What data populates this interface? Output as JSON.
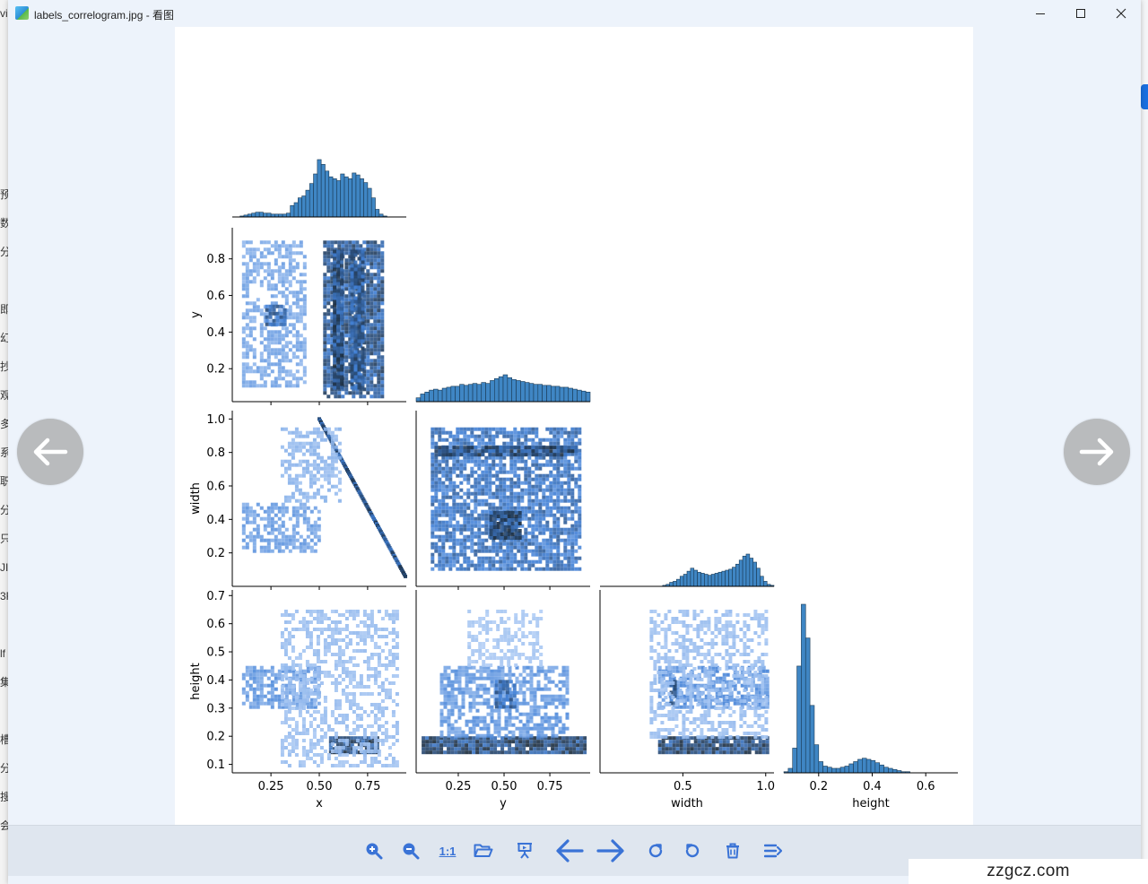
{
  "window": {
    "title": "labels_correlogram.jpg - 看图",
    "controls": [
      "minimize",
      "maximize",
      "close"
    ]
  },
  "background_app": {
    "left_edge_chars": [
      "vi",
      "预",
      "数",
      "分",
      "即",
      "幻",
      "抄",
      "观",
      "多",
      "系",
      "职",
      "分",
      "只",
      "JI",
      "3F",
      "lf",
      "集",
      "槽",
      "分",
      "搜",
      "会"
    ]
  },
  "viewer": {
    "prev_button_icon": "arrow-left-icon",
    "next_button_icon": "arrow-right-icon"
  },
  "toolbar": {
    "buttons": [
      {
        "name": "zoom-in-button",
        "icon": "zoom-in-icon"
      },
      {
        "name": "zoom-out-button",
        "icon": "zoom-out-icon"
      },
      {
        "name": "actual-size-button",
        "label": "1:1"
      },
      {
        "name": "open-folder-button",
        "icon": "folder-open-icon"
      },
      {
        "name": "slideshow-button",
        "icon": "presentation-icon"
      },
      {
        "name": "previous-image-button",
        "icon": "arrow-left-icon"
      },
      {
        "name": "next-image-button",
        "icon": "arrow-right-icon"
      },
      {
        "name": "rotate-clockwise-button",
        "icon": "rotate-cw-icon"
      },
      {
        "name": "rotate-counterclockwise-button",
        "icon": "rotate-ccw-icon"
      },
      {
        "name": "delete-button",
        "icon": "trash-icon"
      },
      {
        "name": "more-button",
        "icon": "menu-icon"
      }
    ],
    "accent_color": "#3a73d6"
  },
  "watermark": "zzgcz.com",
  "chart_data": {
    "type": "heatmap",
    "variables": [
      "x",
      "y",
      "width",
      "height"
    ],
    "axis_labels": {
      "x": "x",
      "y": "y",
      "width": "width",
      "height": "height"
    },
    "layout": "lower-triangular pair grid: histograms on diagonal, 2D histograms below",
    "ticks": {
      "x": [
        "0.25",
        "0.50",
        "0.75"
      ],
      "y_bottom": [
        "0.25",
        "0.50",
        "0.75"
      ],
      "width_bottom": [
        "0.5",
        "1.0"
      ],
      "height_bottom": [
        "0.2",
        "0.4",
        "0.6"
      ],
      "y_left": [
        "0.2",
        "0.4",
        "0.6",
        "0.8"
      ],
      "width_left": [
        "0.2",
        "0.4",
        "0.6",
        "0.8",
        "1.0"
      ],
      "height_left": [
        "0.1",
        "0.2",
        "0.3",
        "0.4",
        "0.5",
        "0.6",
        "0.7"
      ]
    },
    "ranges": {
      "x": [
        0.05,
        0.95
      ],
      "y": [
        0.02,
        0.97
      ],
      "width": [
        0.0,
        1.05
      ],
      "height": [
        0.07,
        0.72
      ]
    },
    "histograms": {
      "x": {
        "bins": [
          0.05,
          0.95
        ],
        "values": [
          0,
          0,
          1,
          2,
          3,
          4,
          5,
          5,
          4,
          4,
          3,
          3,
          3,
          3,
          4,
          12,
          15,
          20,
          22,
          28,
          35,
          45,
          60,
          55,
          48,
          42,
          40,
          38,
          45,
          42,
          40,
          46,
          44,
          40,
          36,
          30,
          20,
          8,
          3,
          1,
          0,
          0,
          0,
          0,
          0
        ]
      },
      "y": {
        "bins": [
          0.02,
          0.97
        ],
        "values": [
          4,
          8,
          10,
          12,
          13,
          12,
          14,
          15,
          16,
          16,
          18,
          17,
          18,
          19,
          18,
          20,
          19,
          22,
          24,
          26,
          28,
          25,
          23,
          22,
          21,
          20,
          19,
          18,
          18,
          17,
          17,
          16,
          16,
          15,
          15,
          14,
          13,
          12,
          11,
          10
        ]
      },
      "width": {
        "bins": [
          0.0,
          1.05
        ],
        "values": [
          0,
          0,
          0,
          0,
          0,
          0,
          0,
          0,
          0,
          0,
          0,
          0,
          0,
          0,
          0,
          0,
          0,
          0,
          1,
          2,
          4,
          5,
          7,
          10,
          12,
          15,
          18,
          16,
          14,
          13,
          12,
          11,
          12,
          13,
          14,
          15,
          16,
          17,
          19,
          22,
          26,
          30,
          32,
          28,
          24,
          18,
          10,
          5,
          2,
          1
        ]
      },
      "height": {
        "bins": [
          0.07,
          0.72
        ],
        "values": [
          1,
          4,
          22,
          95,
          150,
          120,
          60,
          25,
          10,
          6,
          5,
          4,
          4,
          5,
          6,
          8,
          10,
          12,
          13,
          12,
          11,
          9,
          7,
          5,
          4,
          3,
          2,
          1,
          1,
          0,
          0,
          0,
          0,
          0,
          0,
          0,
          0,
          0,
          0,
          0
        ]
      }
    },
    "joint_clusters": {
      "x_y": [
        {
          "x": [
            0.52,
            0.82
          ],
          "y": [
            0.05,
            0.9
          ],
          "d": 0.9
        },
        {
          "x": [
            0.57,
            0.61
          ],
          "y": [
            0.1,
            0.85
          ],
          "d": 1.0
        },
        {
          "x": [
            0.66,
            0.72
          ],
          "y": [
            0.1,
            0.85
          ],
          "d": 0.9
        },
        {
          "x": [
            0.1,
            0.42
          ],
          "y": [
            0.1,
            0.9
          ],
          "d": 0.35
        },
        {
          "x": [
            0.22,
            0.32
          ],
          "y": [
            0.45,
            0.55
          ],
          "d": 0.8
        }
      ],
      "x_width": [
        {
          "x": [
            0.5,
            0.95
          ],
          "y": [
            0.05,
            1.0
          ],
          "d": 0.95,
          "shape": "diagonal line from (0.5,1.0) to (0.95,0.05)"
        },
        {
          "x": [
            0.1,
            0.5
          ],
          "y": [
            0.2,
            0.5
          ],
          "d": 0.4
        },
        {
          "x": [
            0.3,
            0.6
          ],
          "y": [
            0.5,
            0.95
          ],
          "d": 0.25
        }
      ],
      "y_width": [
        {
          "x": [
            0.1,
            0.92
          ],
          "y": [
            0.1,
            0.95
          ],
          "d": 0.7
        },
        {
          "x": [
            0.12,
            0.9
          ],
          "y": [
            0.78,
            0.84
          ],
          "d": 1.0
        },
        {
          "x": [
            0.42,
            0.58
          ],
          "y": [
            0.28,
            0.45
          ],
          "d": 1.0
        }
      ],
      "x_height": [
        {
          "x": [
            0.1,
            0.5
          ],
          "y": [
            0.3,
            0.45
          ],
          "d": 0.45
        },
        {
          "x": [
            0.55,
            0.8
          ],
          "y": [
            0.14,
            0.2
          ],
          "d": 1.0
        },
        {
          "x": [
            0.3,
            0.9
          ],
          "y": [
            0.1,
            0.65
          ],
          "d": 0.2
        }
      ],
      "y_height": [
        {
          "x": [
            0.05,
            0.95
          ],
          "y": [
            0.14,
            0.2
          ],
          "d": 1.0
        },
        {
          "x": [
            0.15,
            0.85
          ],
          "y": [
            0.2,
            0.45
          ],
          "d": 0.45
        },
        {
          "x": [
            0.45,
            0.55
          ],
          "y": [
            0.3,
            0.4
          ],
          "d": 0.8
        },
        {
          "x": [
            0.3,
            0.7
          ],
          "y": [
            0.45,
            0.65
          ],
          "d": 0.15
        }
      ],
      "width_height": [
        {
          "x": [
            0.35,
            1.0
          ],
          "y": [
            0.14,
            0.2
          ],
          "d": 1.0
        },
        {
          "x": [
            0.35,
            1.0
          ],
          "y": [
            0.3,
            0.45
          ],
          "d": 0.5
        },
        {
          "x": [
            0.42,
            0.46
          ],
          "y": [
            0.32,
            0.4
          ],
          "d": 0.9
        },
        {
          "x": [
            0.3,
            1.0
          ],
          "y": [
            0.2,
            0.65
          ],
          "d": 0.2
        }
      ]
    },
    "colors": {
      "bar_fill": "#3f86c4",
      "bar_edge": "#1a3a55",
      "heat_low": "#c9defc",
      "heat_mid": "#3f7fd6",
      "heat_high": "#1a2a3a"
    }
  }
}
